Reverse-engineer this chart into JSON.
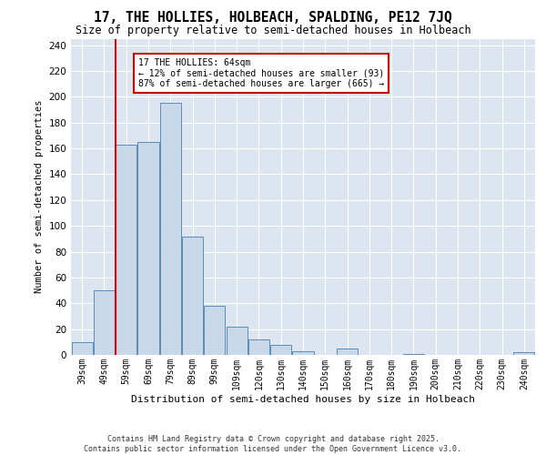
{
  "title": "17, THE HOLLIES, HOLBEACH, SPALDING, PE12 7JQ",
  "subtitle": "Size of property relative to semi-detached houses in Holbeach",
  "xlabel": "Distribution of semi-detached houses by size in Holbeach",
  "ylabel": "Number of semi-detached properties",
  "categories": [
    "39sqm",
    "49sqm",
    "59sqm",
    "69sqm",
    "79sqm",
    "89sqm",
    "99sqm",
    "109sqm",
    "120sqm",
    "130sqm",
    "140sqm",
    "150sqm",
    "160sqm",
    "170sqm",
    "180sqm",
    "190sqm",
    "200sqm",
    "210sqm",
    "220sqm",
    "230sqm",
    "240sqm"
  ],
  "values": [
    10,
    50,
    163,
    165,
    195,
    92,
    38,
    22,
    12,
    8,
    3,
    0,
    5,
    0,
    0,
    1,
    0,
    0,
    0,
    0,
    2
  ],
  "bar_color": "#c8d8e8",
  "bar_edge_color": "#5b8db8",
  "vline_index": 2,
  "vline_color": "#cc0000",
  "annotation_title": "17 THE HOLLIES: 64sqm",
  "annotation_line1": "← 12% of semi-detached houses are smaller (93)",
  "annotation_line2": "87% of semi-detached houses are larger (665) →",
  "annotation_box_color": "#cc0000",
  "ylim": [
    0,
    245
  ],
  "yticks": [
    0,
    20,
    40,
    60,
    80,
    100,
    120,
    140,
    160,
    180,
    200,
    220,
    240
  ],
  "bg_color": "#dde6f0",
  "footer_line1": "Contains HM Land Registry data © Crown copyright and database right 2025.",
  "footer_line2": "Contains public sector information licensed under the Open Government Licence v3.0."
}
